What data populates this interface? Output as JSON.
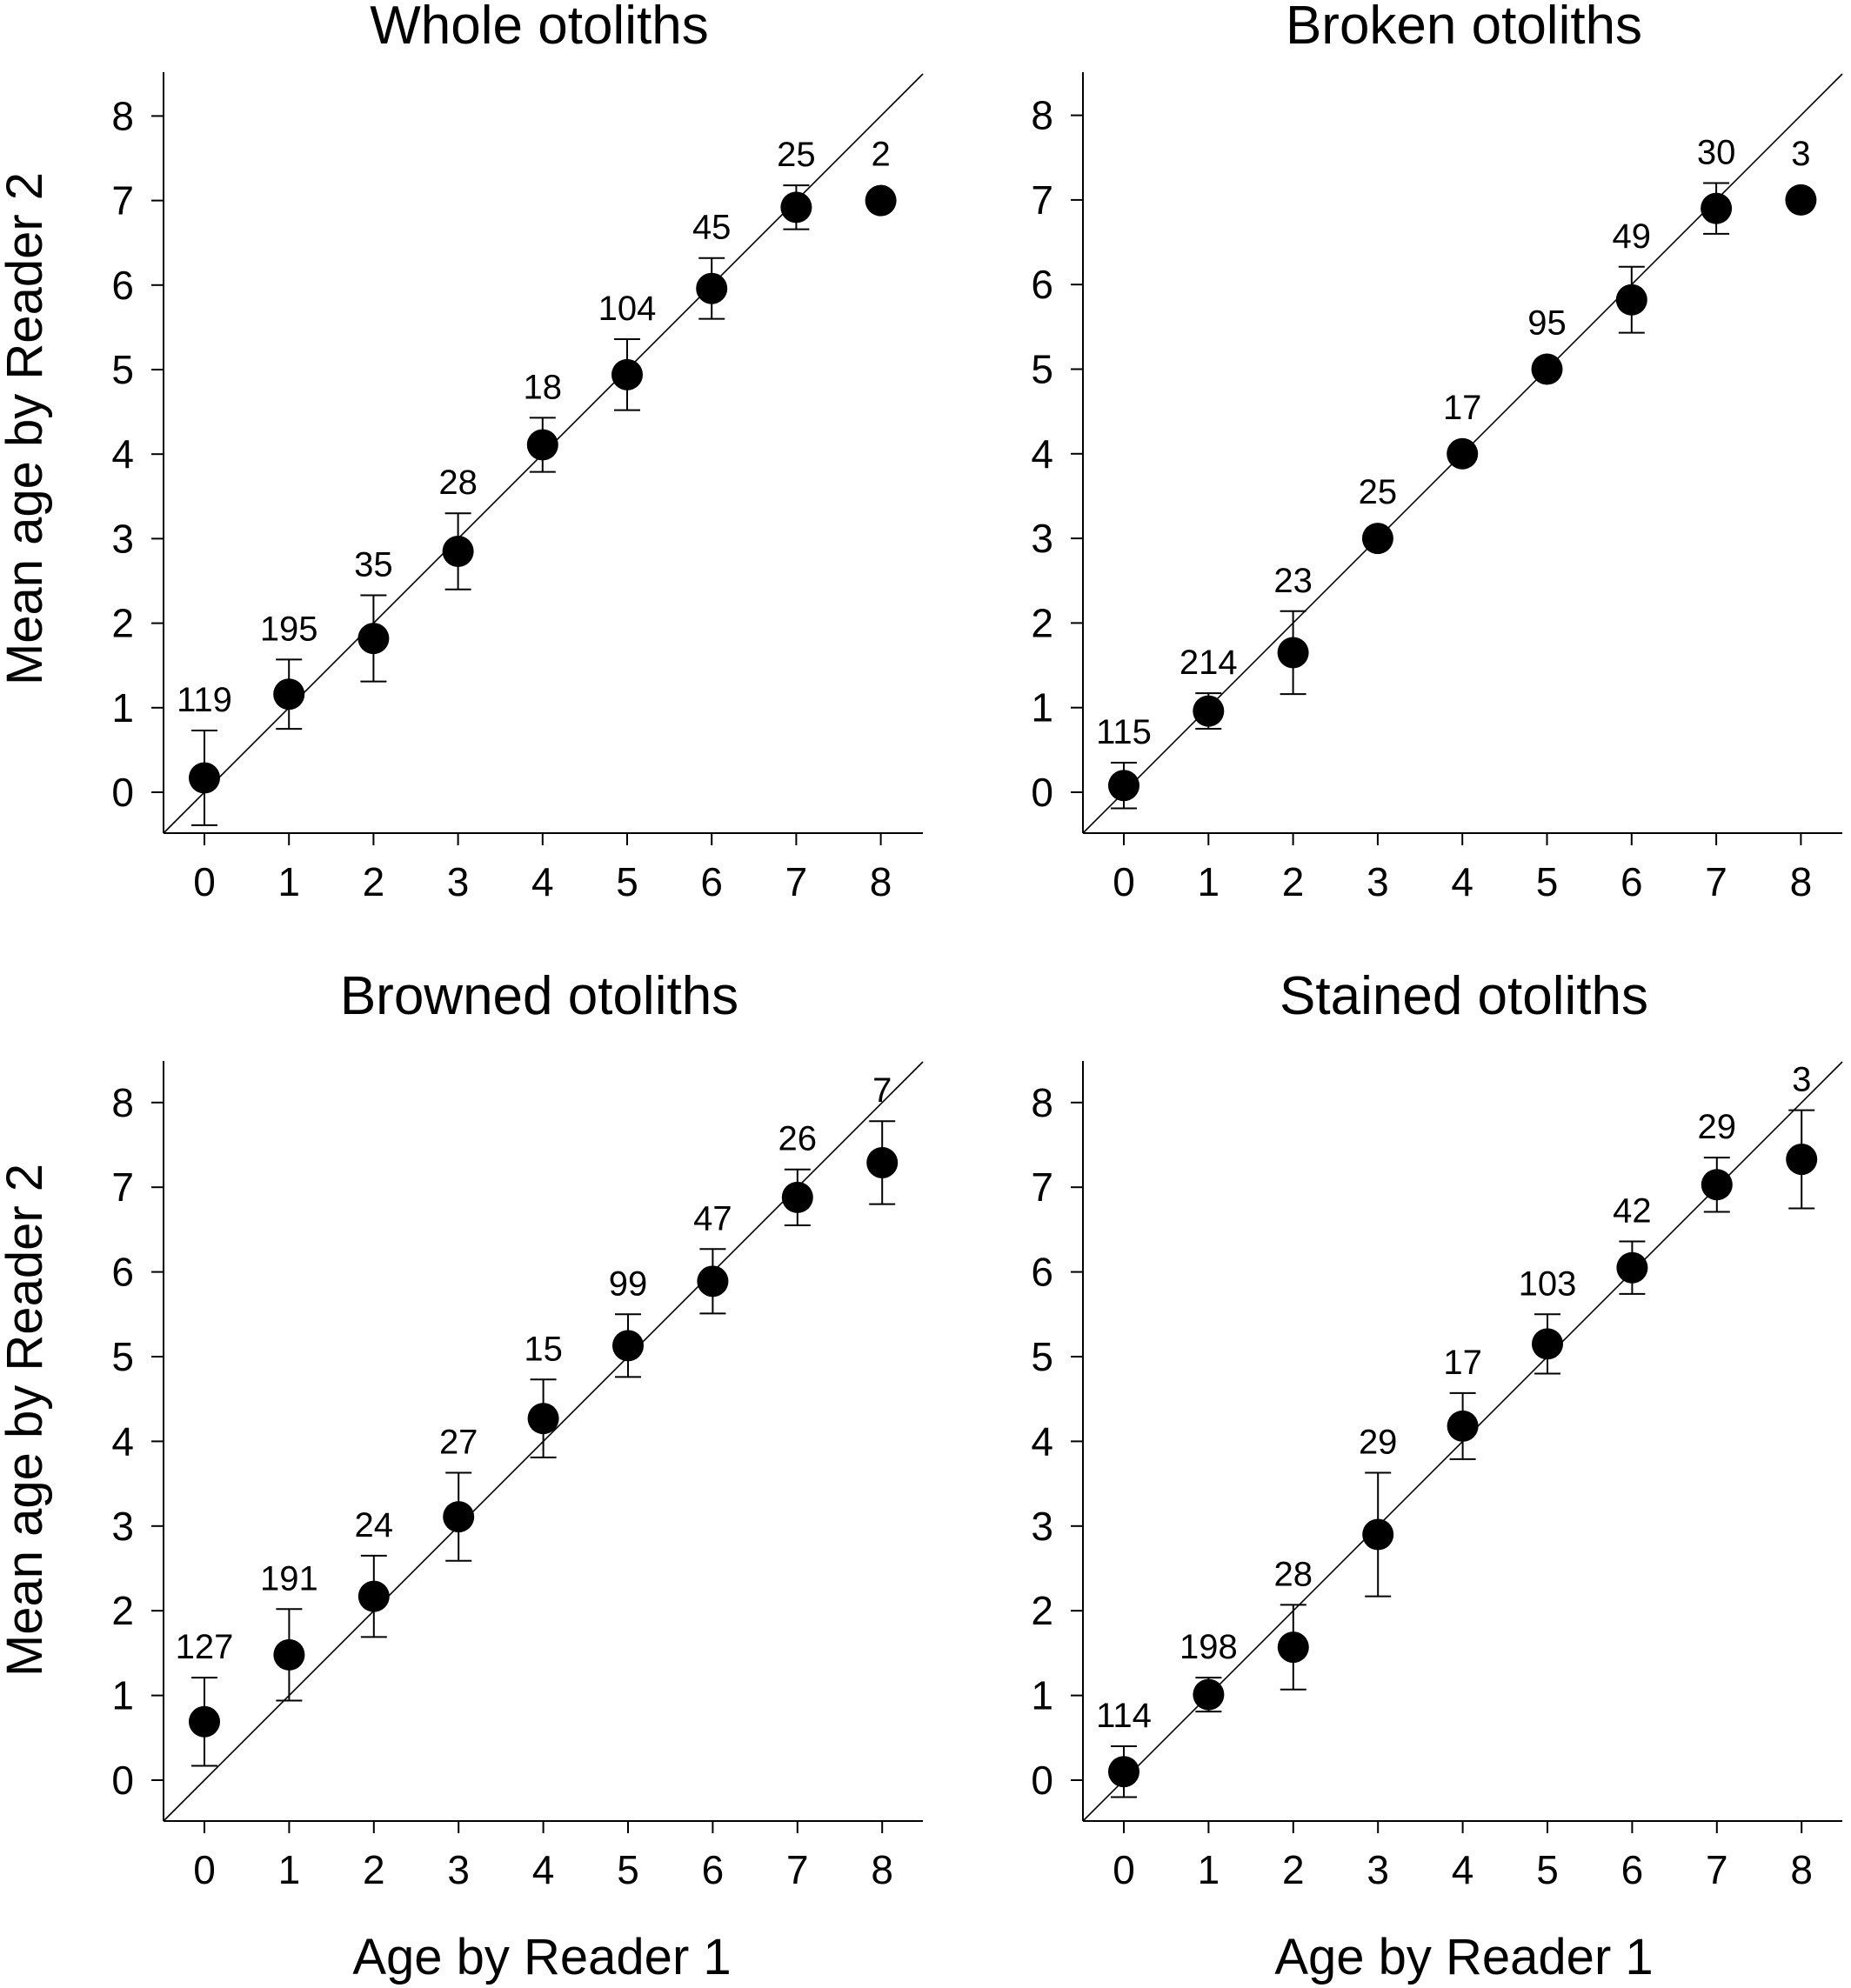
{
  "figure": {
    "ylabel": "Mean age by Reader 2",
    "xlabel": "Age by Reader 1",
    "colors": {
      "marker": "#000000",
      "line": "#000000",
      "background": "#ffffff"
    }
  },
  "chart_data": [
    {
      "type": "scatter",
      "title": "Whole otoliths",
      "xlabel": "",
      "ylabel": "Mean age by Reader 2",
      "xlim": [
        -0.5,
        8.5
      ],
      "ylim": [
        -0.5,
        8.5
      ],
      "xticks": [
        0,
        1,
        2,
        3,
        4,
        5,
        6,
        7,
        8
      ],
      "yticks": [
        0,
        1,
        2,
        3,
        4,
        5,
        6,
        7,
        8
      ],
      "reference_line": "1:1",
      "x": [
        0,
        1,
        2,
        3,
        4,
        5,
        6,
        7,
        8
      ],
      "mean": [
        0.17,
        1.16,
        1.82,
        2.85,
        4.11,
        4.94,
        5.96,
        6.92,
        7.0
      ],
      "sd": [
        0.56,
        0.41,
        0.51,
        0.45,
        0.32,
        0.42,
        0.36,
        0.26,
        0
      ],
      "n": [
        "119",
        "195",
        "35",
        "28",
        "18",
        "104",
        "45",
        "25",
        "2"
      ]
    },
    {
      "type": "scatter",
      "title": "Broken otoliths",
      "xlabel": "",
      "ylabel": "",
      "xlim": [
        -0.5,
        8.5
      ],
      "ylim": [
        -0.5,
        8.5
      ],
      "xticks": [
        0,
        1,
        2,
        3,
        4,
        5,
        6,
        7,
        8
      ],
      "yticks": [
        0,
        1,
        2,
        3,
        4,
        5,
        6,
        7,
        8
      ],
      "reference_line": "1:1",
      "x": [
        0,
        1,
        2,
        3,
        4,
        5,
        6,
        7,
        8
      ],
      "mean": [
        0.08,
        0.96,
        1.65,
        3.0,
        4.0,
        5.0,
        5.82,
        6.9,
        7.0
      ],
      "sd": [
        0.27,
        0.21,
        0.49,
        0,
        0,
        0,
        0.39,
        0.3,
        0
      ],
      "n": [
        "115",
        "214",
        "23",
        "25",
        "17",
        "95",
        "49",
        "30",
        "3"
      ]
    },
    {
      "type": "scatter",
      "title": "Browned otoliths",
      "xlabel": "Age by Reader 1",
      "ylabel": "Mean age by Reader 2",
      "xlim": [
        -0.5,
        8.5
      ],
      "ylim": [
        -0.5,
        8.5
      ],
      "xticks": [
        0,
        1,
        2,
        3,
        4,
        5,
        6,
        7,
        8
      ],
      "yticks": [
        0,
        1,
        2,
        3,
        4,
        5,
        6,
        7,
        8
      ],
      "reference_line": "1:1",
      "x": [
        0,
        1,
        2,
        3,
        4,
        5,
        6,
        7,
        8
      ],
      "mean": [
        0.69,
        1.48,
        2.17,
        3.11,
        4.27,
        5.13,
        5.89,
        6.88,
        7.29
      ],
      "sd": [
        0.52,
        0.54,
        0.48,
        0.52,
        0.46,
        0.37,
        0.38,
        0.33,
        0.49
      ],
      "n": [
        "127",
        "191",
        "24",
        "27",
        "15",
        "99",
        "47",
        "26",
        "7"
      ]
    },
    {
      "type": "scatter",
      "title": "Stained otoliths",
      "xlabel": "Age by Reader 1",
      "ylabel": "",
      "xlim": [
        -0.5,
        8.5
      ],
      "ylim": [
        -0.5,
        8.5
      ],
      "xticks": [
        0,
        1,
        2,
        3,
        4,
        5,
        6,
        7,
        8
      ],
      "yticks": [
        0,
        1,
        2,
        3,
        4,
        5,
        6,
        7,
        8
      ],
      "reference_line": "1:1",
      "x": [
        0,
        1,
        2,
        3,
        4,
        5,
        6,
        7,
        8
      ],
      "mean": [
        0.1,
        1.01,
        1.57,
        2.9,
        4.18,
        5.15,
        6.05,
        7.03,
        7.33
      ],
      "sd": [
        0.3,
        0.2,
        0.5,
        0.73,
        0.39,
        0.35,
        0.31,
        0.32,
        0.58
      ],
      "n": [
        "114",
        "198",
        "28",
        "29",
        "17",
        "103",
        "42",
        "29",
        "3"
      ]
    }
  ]
}
